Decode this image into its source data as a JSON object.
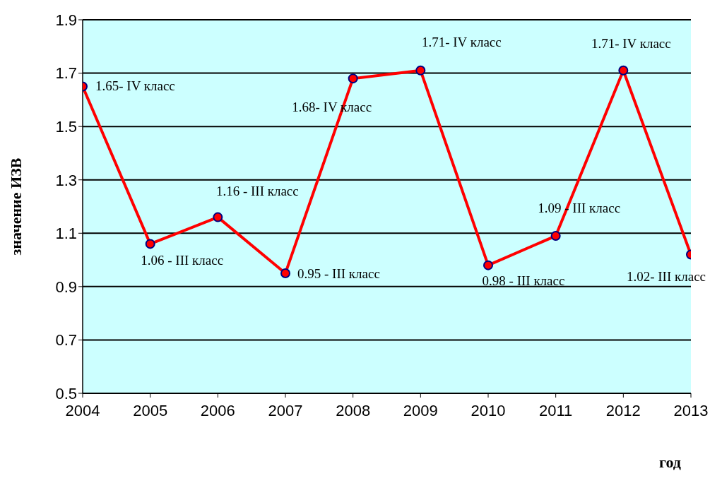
{
  "chart_data": {
    "type": "line",
    "xlabel": "год",
    "ylabel": "значение ИЗВ",
    "x": [
      2004,
      2005,
      2006,
      2007,
      2008,
      2009,
      2010,
      2011,
      2012,
      2013
    ],
    "series": [
      {
        "color": "#ff0000",
        "values": [
          1.65,
          1.06,
          1.16,
          0.95,
          1.68,
          1.71,
          0.98,
          1.09,
          1.71,
          1.02
        ],
        "value_labels": [
          "1.65- IV класс",
          "1.06 - III класс",
          "1.16 - III класс",
          "0.95 - III класс",
          "1.68- IV класс",
          "1.71- IV класс",
          "0.98 - III класс",
          "1.09 - III класс",
          "1.71- IV класс",
          "1.02- III класс"
        ]
      }
    ],
    "xlim": [
      2004,
      2013
    ],
    "xticks": [
      2004,
      2005,
      2006,
      2007,
      2008,
      2009,
      2010,
      2011,
      2012,
      2013
    ],
    "ylim": [
      0.5,
      1.9
    ],
    "yticks": [
      0.5,
      0.7,
      0.9,
      1.1,
      1.3,
      1.5,
      1.7,
      1.9
    ],
    "grid": "y",
    "marker": "circle",
    "line_style": "solid"
  }
}
